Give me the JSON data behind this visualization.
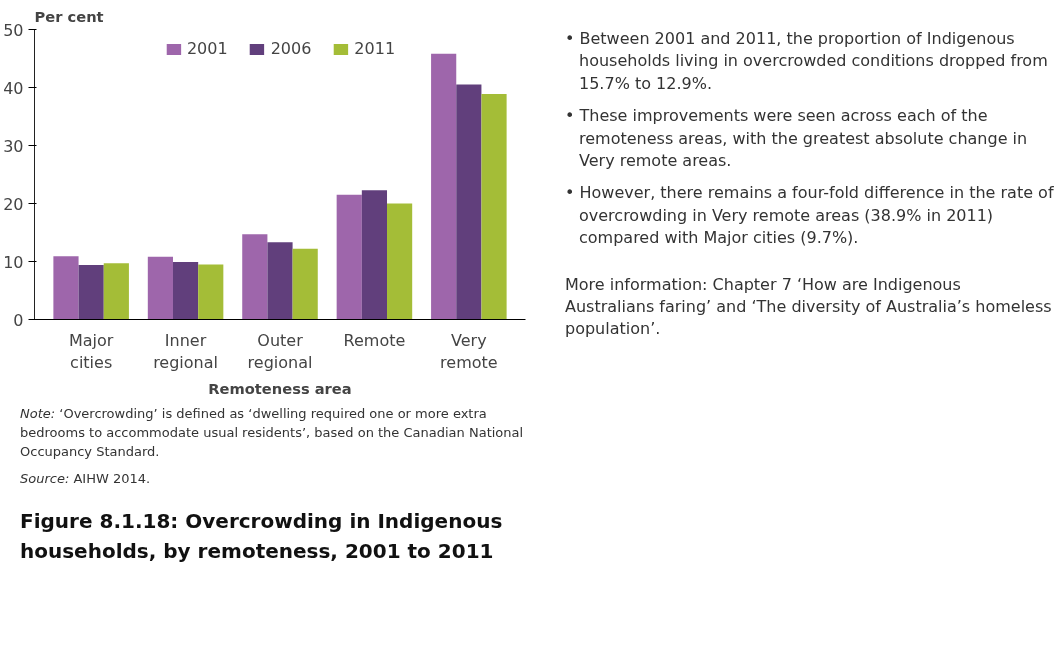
{
  "chart_data": {
    "type": "bar",
    "title": "Figure 8.1.18: Overcrowding in Indigenous households, by remoteness, 2001 to 2011",
    "ylabel": "Per cent",
    "xlabel": "Remoteness area",
    "categories": [
      "Major cities",
      "Inner regional",
      "Outer regional",
      "Remote",
      "Very remote"
    ],
    "series": [
      {
        "name": "2001",
        "color": "#9e66ab",
        "values": [
          10.9,
          10.8,
          14.7,
          21.5,
          45.8
        ]
      },
      {
        "name": "2006",
        "color": "#613f7c",
        "values": [
          9.4,
          9.9,
          13.3,
          22.3,
          40.5
        ]
      },
      {
        "name": "2011",
        "color": "#a4bd37",
        "values": [
          9.7,
          9.5,
          12.2,
          20.0,
          38.9
        ]
      }
    ],
    "ylim": [
      0,
      50
    ],
    "yticks": [
      0,
      10,
      20,
      30,
      40,
      50
    ],
    "grid": false,
    "legend": "top",
    "annotations": [
      "Note: ‘Overcrowding’ is defined as ‘dwelling required one or more extra bedrooms to accommodate usual residents’, based on the Canadian National Occupancy Standard.",
      "Source: AIHW 2014.",
      "• Between 2001 and 2011, the proportion of Indigenous households living in overcrowded conditions dropped from 15.7% to 12.9%.",
      "• These improvements were seen across each of the remoteness areas, with the greatest absolute change in Very remote areas.",
      "• However, there remains a four-fold difference in the rate of overcrowding in Very remote areas (38.9% in 2011) compared with Major cities (9.7%).",
      "More information: Chapter 7 ‘How are Indigenous Australians faring’ and ‘The diversity of Australia’s homeless population’."
    ]
  }
}
